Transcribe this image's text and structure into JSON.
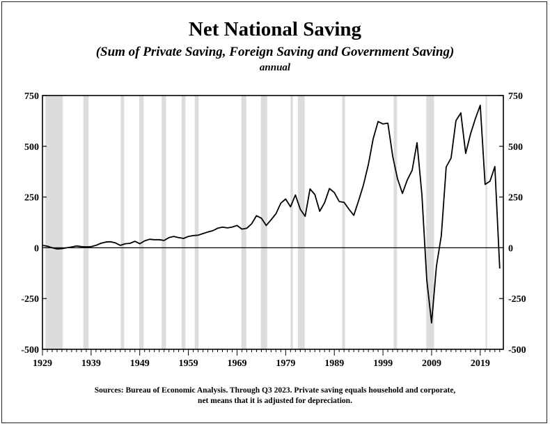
{
  "chart_data": {
    "type": "line",
    "title": "Net National Saving",
    "subtitle": "(Sum of Private Saving, Foreign Saving and Government Saving)",
    "frequency_label": "annual",
    "source_note_line1": "Sources: Bureau of Economic Analysis. Through Q3 2023. Private saving equals household and corporate,",
    "source_note_line2": "net means that it is adjusted for depreciation.",
    "xlim": [
      1929,
      2023.75
    ],
    "ylim": [
      -500,
      750
    ],
    "x_ticks": [
      1929,
      1939,
      1949,
      1959,
      1969,
      1979,
      1989,
      1999,
      2009,
      2019
    ],
    "y_ticks": [
      -500,
      -250,
      0,
      250,
      500,
      750
    ],
    "y_tick_labels_left": [
      "-500",
      "-250",
      "0",
      "250",
      "500",
      "750"
    ],
    "y_tick_labels_right": [
      "-500",
      "-250",
      "0",
      "250",
      "500",
      "750"
    ],
    "x_tick_labels": [
      "1929",
      "1939",
      "1949",
      "1959",
      "1969",
      "1979",
      "1989",
      "1999",
      "2009",
      "2019"
    ],
    "grid": false,
    "recession_shading_color": "#dcdcdc",
    "line_color": "#000000",
    "recessions": [
      [
        1929.6,
        1933.2
      ],
      [
        1937.4,
        1938.5
      ],
      [
        1945.1,
        1945.8
      ],
      [
        1948.9,
        1949.8
      ],
      [
        1953.5,
        1954.4
      ],
      [
        1957.6,
        1958.4
      ],
      [
        1960.3,
        1961.1
      ],
      [
        1969.9,
        1970.9
      ],
      [
        1973.9,
        1975.2
      ],
      [
        1980.0,
        1980.5
      ],
      [
        1981.5,
        1982.9
      ],
      [
        1990.6,
        1991.2
      ],
      [
        2001.2,
        2001.9
      ],
      [
        2007.9,
        2009.5
      ],
      [
        2020.1,
        2020.4
      ]
    ],
    "series": [
      {
        "x": [
          1929,
          1930,
          1931,
          1932,
          1933,
          1934,
          1935,
          1936,
          1937,
          1938,
          1939,
          1940,
          1941,
          1942,
          1943,
          1944,
          1945,
          1946,
          1947,
          1948,
          1949,
          1950,
          1951,
          1952,
          1953,
          1954,
          1955,
          1956,
          1957,
          1958,
          1959,
          1960,
          1961,
          1962,
          1963,
          1964,
          1965,
          1966,
          1967,
          1968,
          1969,
          1970,
          1971,
          1972,
          1973,
          1974,
          1975,
          1976,
          1977,
          1978,
          1979,
          1980,
          1981,
          1982,
          1983,
          1984,
          1985,
          1986,
          1987,
          1988,
          1989,
          1990,
          1991,
          1992,
          1993,
          1994,
          1995,
          1996,
          1997,
          1998,
          1999,
          2000,
          2001,
          2002,
          2003,
          2004,
          2005,
          2006,
          2007,
          2008,
          2009,
          2010,
          2011,
          2012,
          2013,
          2014,
          2015,
          2016,
          2017,
          2018,
          2019,
          2020,
          2021,
          2022,
          2023
        ],
        "values": [
          12,
          8,
          0,
          -6,
          -4,
          0,
          4,
          9,
          6,
          4,
          6,
          12,
          22,
          28,
          30,
          24,
          12,
          20,
          22,
          32,
          20,
          34,
          42,
          40,
          40,
          36,
          50,
          56,
          50,
          46,
          56,
          60,
          62,
          70,
          78,
          84,
          96,
          102,
          98,
          102,
          110,
          92,
          96,
          118,
          158,
          146,
          110,
          138,
          168,
          220,
          240,
          202,
          260,
          190,
          155,
          290,
          262,
          180,
          222,
          292,
          272,
          228,
          224,
          190,
          160,
          232,
          310,
          410,
          538,
          622,
          610,
          614,
          450,
          340,
          268,
          334,
          382,
          518,
          262,
          -158,
          -370,
          -90,
          60,
          398,
          442,
          626,
          664,
          465,
          560,
          636,
          702,
          312,
          328,
          400,
          -102
        ]
      }
    ]
  }
}
